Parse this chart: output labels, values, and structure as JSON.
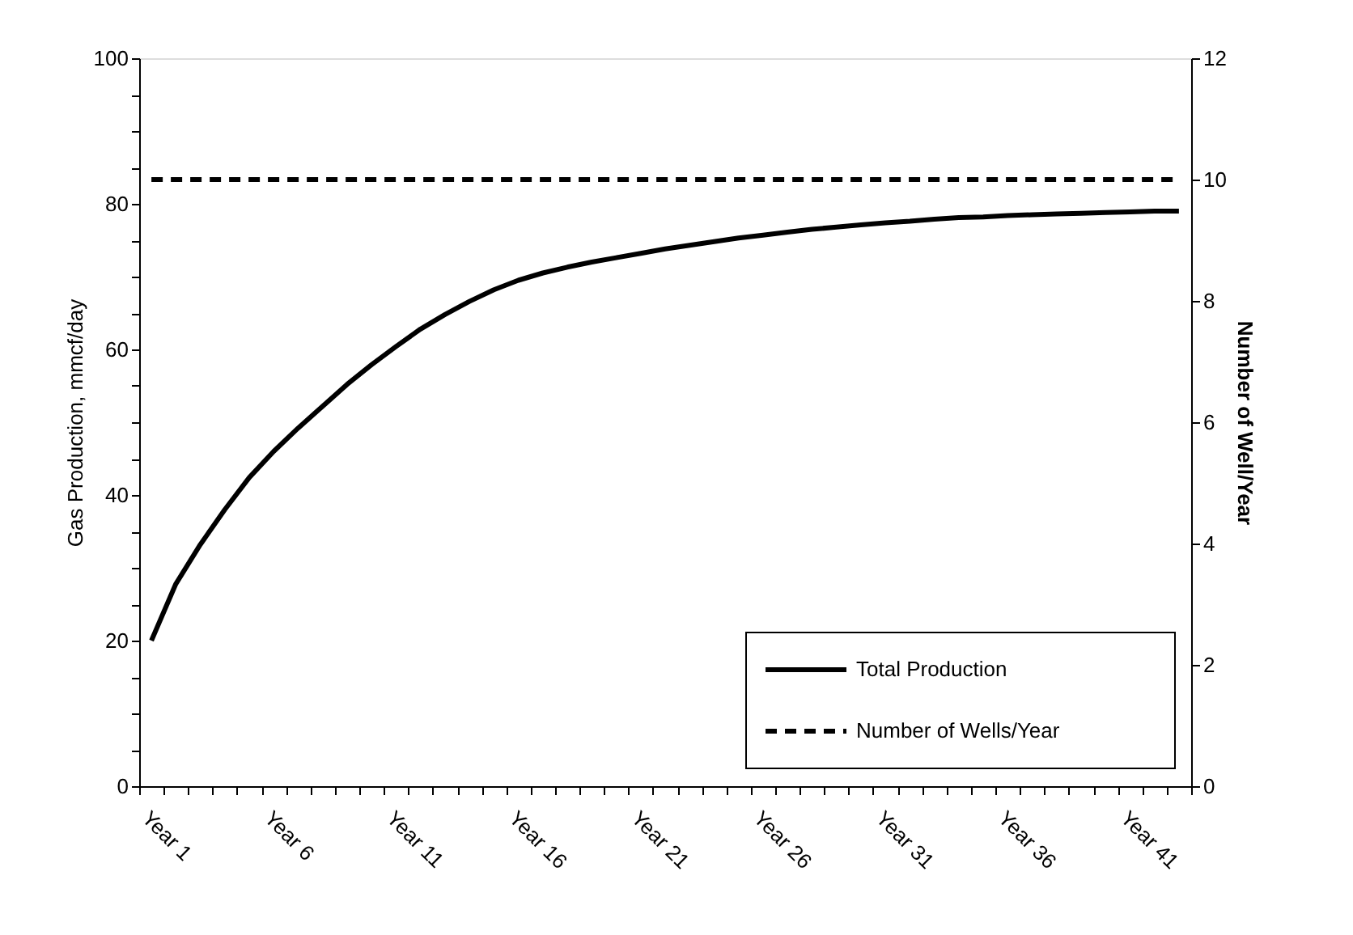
{
  "chart_data": {
    "type": "line",
    "ylabel": "Gas Production, mmcf/day",
    "y2label": "Number of Well/Year",
    "categories": [
      "Year 1",
      null,
      null,
      null,
      null,
      "Year 6",
      null,
      null,
      null,
      null,
      "Year 11",
      null,
      null,
      null,
      null,
      "Year 16",
      null,
      null,
      null,
      null,
      "Year 21",
      null,
      null,
      null,
      null,
      "Year 26",
      null,
      null,
      null,
      null,
      "Year 31",
      null,
      null,
      null,
      null,
      "Year 36",
      null,
      null,
      null,
      null,
      "Year 41",
      null,
      null
    ],
    "series": [
      {
        "name": "Total Production",
        "color": "#000000",
        "line_style": "solid",
        "values": [
          20,
          27.8,
          33.2,
          38,
          42.4,
          46,
          49.2,
          52.2,
          55.2,
          57.9,
          60.4,
          62.8,
          64.8,
          66.6,
          68.2,
          69.5,
          70.5,
          71.3,
          72,
          72.6,
          73.2,
          73.8,
          74.3,
          74.8,
          75.3,
          75.7,
          76.1,
          76.5,
          76.8,
          77.1,
          77.4,
          77.6,
          77.9,
          78.1,
          78.2,
          78.4,
          78.5,
          78.6,
          78.7,
          78.8,
          78.9,
          79,
          79
        ]
      },
      {
        "name": "Number of Wells/Year",
        "color": "#000000",
        "line_style": "dashed",
        "axis": "y2",
        "values": [
          10,
          10,
          10,
          10,
          10,
          10,
          10,
          10,
          10,
          10,
          10,
          10,
          10,
          10,
          10,
          10,
          10,
          10,
          10,
          10,
          10,
          10,
          10,
          10,
          10,
          10,
          10,
          10,
          10,
          10,
          10,
          10,
          10,
          10,
          10,
          10,
          10,
          10,
          10,
          10,
          10,
          10,
          10
        ]
      }
    ],
    "ylim": [
      0,
      100
    ],
    "yticks": [
      0,
      {
        "value": 5,
        "label": null
      },
      {
        "value": 10,
        "label": null
      },
      {
        "value": 15,
        "label": null
      },
      20,
      {
        "value": 25,
        "label": null
      },
      {
        "value": 30,
        "label": null
      },
      {
        "value": 35,
        "label": null
      },
      40,
      {
        "value": 45,
        "label": null
      },
      {
        "value": 50,
        "label": null
      },
      {
        "value": 55,
        "label": null
      },
      60,
      {
        "value": 65,
        "label": null
      },
      {
        "value": 70,
        "label": null
      },
      {
        "value": 75,
        "label": null
      },
      80,
      {
        "value": 85,
        "label": null
      },
      {
        "value": 90,
        "label": null
      },
      {
        "value": 95,
        "label": null
      },
      100
    ],
    "y2lim": [
      0,
      12
    ],
    "y2ticks": [
      0,
      2,
      4,
      6,
      8,
      10,
      12
    ],
    "grid": false,
    "legend": "bottom right",
    "marker": "none"
  }
}
